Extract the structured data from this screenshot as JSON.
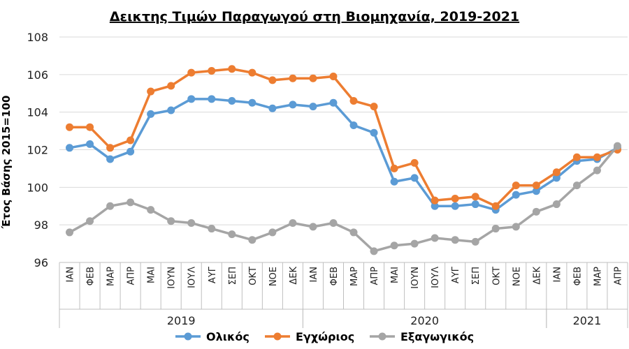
{
  "chart_data": {
    "type": "line",
    "title": "Δεικτης Τιμών Παραγωγού στη Βιομηχανία, 2019-2021",
    "ylabel": "Έτος Βάσης 2015=100",
    "xlabel": "",
    "ylim": [
      96,
      108
    ],
    "yticks": [
      96,
      98,
      100,
      102,
      104,
      106,
      108
    ],
    "grid": true,
    "legend_position": "bottom",
    "categories": [
      "ΙΑΝ",
      "ΦΕΒ",
      "ΜΑΡ",
      "ΑΠΡ",
      "ΜΑΙ",
      "ΙΟΥΝ",
      "ΙΟΥΛ",
      "ΑΥΓ",
      "ΣΕΠ",
      "ΟΚΤ",
      "ΝΟΕ",
      "ΔΕΚ",
      "ΙΑΝ",
      "ΦΕΒ",
      "ΜΑΡ",
      "ΑΠΡ",
      "ΜΑΙ",
      "ΙΟΥΝ",
      "ΙΟΥΛ",
      "ΑΥΓ",
      "ΣΕΠ",
      "ΟΚΤ",
      "ΝΟΕ",
      "ΔΕΚ",
      "ΙΑΝ",
      "ΦΕΒ",
      "ΜΑΡ",
      "ΑΠΡ"
    ],
    "groups": [
      {
        "label": "2019",
        "count": 12
      },
      {
        "label": "2020",
        "count": 12
      },
      {
        "label": "2021",
        "count": 4
      }
    ],
    "series": [
      {
        "name": "Ολικός",
        "color": "#5b9bd5",
        "values": [
          102.1,
          102.3,
          101.5,
          101.9,
          103.9,
          104.1,
          104.7,
          104.7,
          104.6,
          104.5,
          104.2,
          104.4,
          104.3,
          104.5,
          103.3,
          102.9,
          100.3,
          100.5,
          99.0,
          99.0,
          99.1,
          98.8,
          99.6,
          99.8,
          100.5,
          101.4,
          101.5,
          102.1
        ]
      },
      {
        "name": "Εγχώριος",
        "color": "#ed7d31",
        "values": [
          103.2,
          103.2,
          102.1,
          102.5,
          105.1,
          105.4,
          106.1,
          106.2,
          106.3,
          106.1,
          105.7,
          105.8,
          105.8,
          105.9,
          104.6,
          104.3,
          101.0,
          101.3,
          99.3,
          99.4,
          99.5,
          99.0,
          100.1,
          100.1,
          100.8,
          101.6,
          101.6,
          102.0
        ]
      },
      {
        "name": "Εξαγωγικός",
        "color": "#a5a5a5",
        "values": [
          97.6,
          98.2,
          99.0,
          99.2,
          98.8,
          98.2,
          98.1,
          97.8,
          97.5,
          97.2,
          97.6,
          98.1,
          97.9,
          98.1,
          97.6,
          96.6,
          96.9,
          97.0,
          97.3,
          97.2,
          97.1,
          97.8,
          97.9,
          98.7,
          99.1,
          100.1,
          100.9,
          102.2
        ]
      }
    ]
  }
}
